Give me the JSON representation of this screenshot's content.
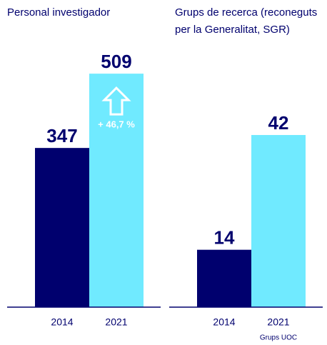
{
  "chart_data": [
    {
      "type": "bar",
      "title": "Personal investigador",
      "categories": [
        "2014",
        "2021"
      ],
      "values": [
        347,
        509
      ],
      "colors": [
        "#00006e",
        "#70eaff"
      ],
      "ylim": [
        0,
        545
      ],
      "annotation": "+ 46,7 %"
    },
    {
      "type": "bar",
      "title": [
        "Grups de recerca (reconeguts",
        "per la Generalitat, SGR)"
      ],
      "categories": [
        "2014",
        "2021"
      ],
      "values": [
        14,
        42
      ],
      "colors": [
        "#00006e",
        "#70eaff"
      ],
      "ylim": [
        0,
        61
      ],
      "source": "Grups UOC"
    }
  ]
}
